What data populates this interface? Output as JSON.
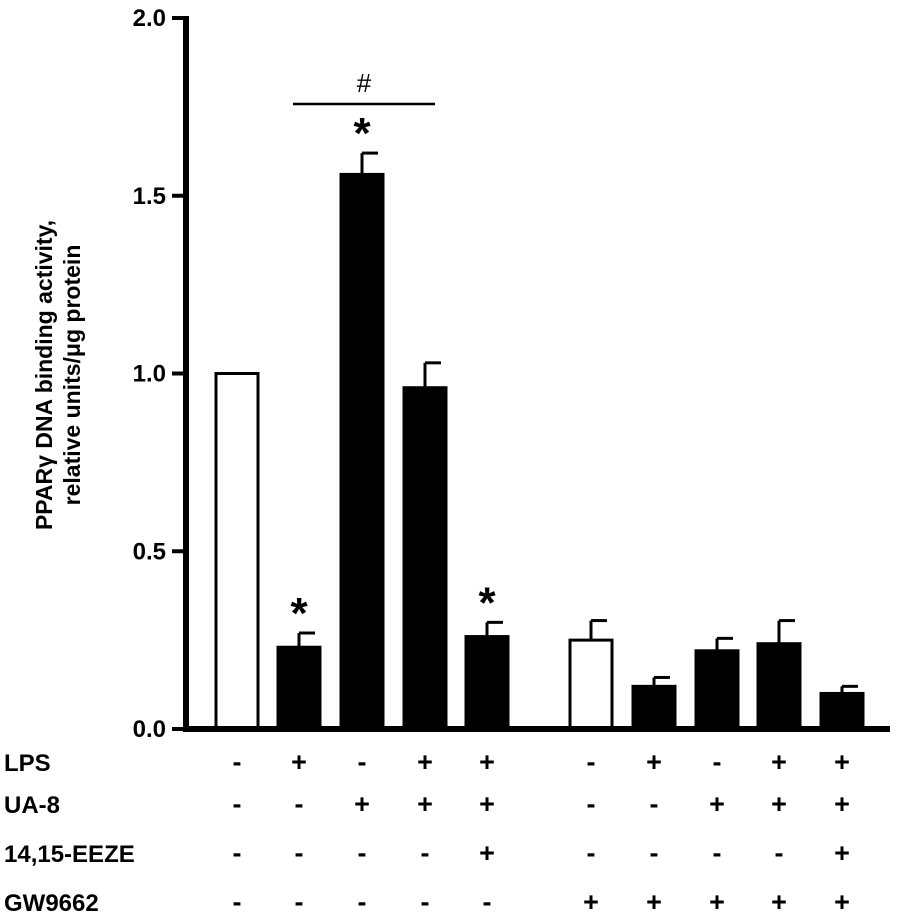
{
  "chart_data": {
    "type": "bar",
    "ylabel_line1": "PPARγ DNA binding activity,",
    "ylabel_line2": "relative units/μg protein",
    "ylim": [
      0,
      2.0
    ],
    "yticks": [
      "0.0",
      "0.5",
      "1.0",
      "1.5",
      "2.0"
    ],
    "bars": [
      {
        "value": 1.0,
        "error": 0.0,
        "fill": "white",
        "annotation": ""
      },
      {
        "value": 0.23,
        "error": 0.04,
        "fill": "black",
        "annotation": "*"
      },
      {
        "value": 1.56,
        "error": 0.06,
        "fill": "black",
        "annotation": "*"
      },
      {
        "value": 0.96,
        "error": 0.07,
        "fill": "black",
        "annotation": ""
      },
      {
        "value": 0.26,
        "error": 0.04,
        "fill": "black",
        "annotation": "*"
      },
      {
        "value": 0.25,
        "error": 0.055,
        "fill": "white",
        "annotation": ""
      },
      {
        "value": 0.12,
        "error": 0.025,
        "fill": "black",
        "annotation": ""
      },
      {
        "value": 0.22,
        "error": 0.035,
        "fill": "black",
        "annotation": ""
      },
      {
        "value": 0.24,
        "error": 0.065,
        "fill": "black",
        "annotation": ""
      },
      {
        "value": 0.1,
        "error": 0.02,
        "fill": "black",
        "annotation": ""
      }
    ],
    "bracket": {
      "from_bar": 1,
      "to_bar": 3,
      "label": "#"
    },
    "treatment_rows": [
      {
        "label": "LPS",
        "signs": [
          "-",
          "+",
          "-",
          "+",
          "+",
          "-",
          "+",
          "-",
          "+",
          "+"
        ]
      },
      {
        "label": "UA-8",
        "signs": [
          "-",
          "-",
          "+",
          "+",
          "+",
          "-",
          "-",
          "+",
          "+",
          "+"
        ]
      },
      {
        "label": "14,15-EEZE",
        "signs": [
          "-",
          "-",
          "-",
          "-",
          "+",
          "-",
          "-",
          "-",
          "-",
          "+"
        ]
      },
      {
        "label": "GW9662",
        "signs": [
          "-",
          "-",
          "-",
          "-",
          "-",
          "+",
          "+",
          "+",
          "+",
          "+"
        ]
      }
    ]
  }
}
